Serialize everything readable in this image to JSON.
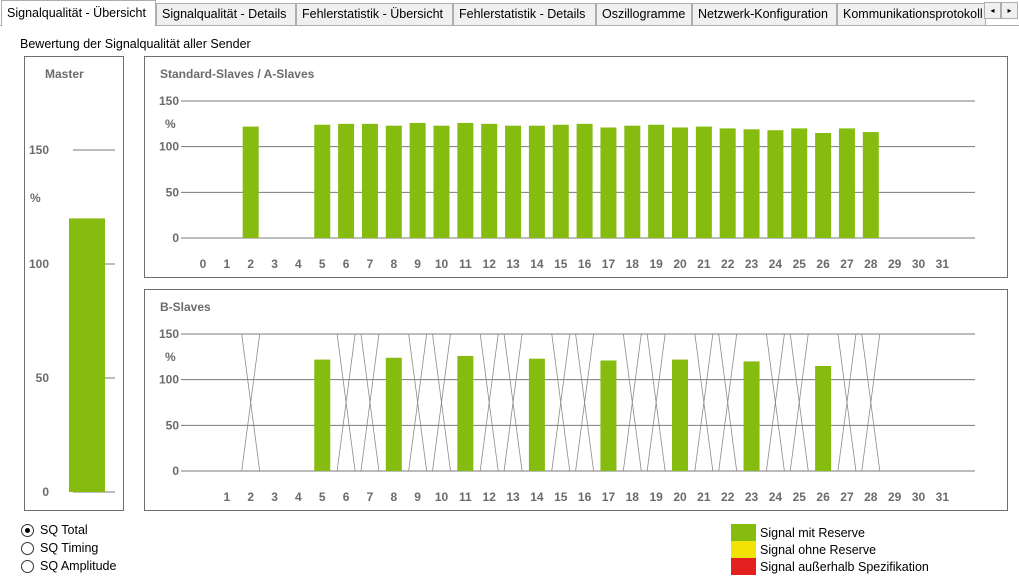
{
  "tabs": [
    {
      "label": "Signalqualität - Übersicht",
      "active": true
    },
    {
      "label": "Signalqualität - Details",
      "active": false
    },
    {
      "label": "Fehlerstatistik - Übersicht",
      "active": false
    },
    {
      "label": "Fehlerstatistik - Details",
      "active": false
    },
    {
      "label": "Oszillogramme",
      "active": false
    },
    {
      "label": "Netzwerk-Konfiguration",
      "active": false
    },
    {
      "label": "Kommunikationsprotokoll",
      "active": false
    }
  ],
  "tab_scroll": {
    "left_icon": "◂",
    "right_icon": "▸"
  },
  "caption": "Bewertung der Signalqualität aller Sender",
  "colors": {
    "green": "#86bc0f",
    "yellow": "#f2e205",
    "red": "#e32020",
    "grid": "#7a7a7a",
    "label": "#6b6b6b"
  },
  "master": {
    "title": "Master",
    "unit": "%",
    "ticks": [
      "150",
      "100",
      "50",
      "0"
    ],
    "value": 120
  },
  "a_slaves": {
    "title": "Standard-Slaves / A-Slaves",
    "unit": "%",
    "ticks": [
      "150",
      "100",
      "50",
      "0"
    ],
    "x_labels": [
      "0",
      "1",
      "2",
      "3",
      "4",
      "5",
      "6",
      "7",
      "8",
      "9",
      "10",
      "11",
      "12",
      "13",
      "14",
      "15",
      "16",
      "17",
      "18",
      "19",
      "20",
      "21",
      "22",
      "23",
      "24",
      "25",
      "26",
      "27",
      "28",
      "29",
      "30",
      "31"
    ]
  },
  "b_slaves": {
    "title": "B-Slaves",
    "unit": "%",
    "ticks": [
      "150",
      "100",
      "50",
      "0"
    ],
    "x_labels": [
      "1",
      "2",
      "3",
      "4",
      "5",
      "6",
      "7",
      "8",
      "9",
      "10",
      "11",
      "12",
      "13",
      "14",
      "15",
      "16",
      "17",
      "18",
      "19",
      "20",
      "21",
      "22",
      "23",
      "24",
      "25",
      "26",
      "27",
      "28",
      "29",
      "30",
      "31"
    ]
  },
  "chart_data": [
    {
      "type": "bar",
      "title": "Master",
      "ylabel": "%",
      "ylim": [
        0,
        150
      ],
      "categories": [
        "Master"
      ],
      "values": [
        120
      ]
    },
    {
      "type": "bar",
      "title": "Standard-Slaves / A-Slaves",
      "ylabel": "%",
      "ylim": [
        0,
        150
      ],
      "x": [
        2,
        5,
        6,
        7,
        8,
        9,
        10,
        11,
        12,
        13,
        14,
        15,
        16,
        17,
        18,
        19,
        20,
        21,
        22,
        23,
        24,
        25,
        26,
        27,
        28
      ],
      "values": [
        122,
        124,
        125,
        125,
        123,
        126,
        123,
        126,
        125,
        123,
        123,
        124,
        125,
        121,
        123,
        124,
        121,
        122,
        120,
        119,
        118,
        120,
        115,
        120,
        116
      ],
      "crossed": []
    },
    {
      "type": "bar",
      "title": "B-Slaves",
      "ylabel": "%",
      "ylim": [
        0,
        150
      ],
      "x": [
        5,
        8,
        11,
        14,
        17,
        20,
        23,
        26
      ],
      "values": [
        122,
        124,
        126,
        123,
        121,
        122,
        120,
        115
      ],
      "crossed": [
        2,
        6,
        7,
        9,
        10,
        12,
        13,
        15,
        16,
        18,
        19,
        21,
        22,
        24,
        25,
        27,
        28
      ]
    }
  ],
  "radios": [
    {
      "label": "SQ Total",
      "checked": true
    },
    {
      "label": "SQ Timing",
      "checked": false
    },
    {
      "label": "SQ Amplitude",
      "checked": false
    }
  ],
  "legend": [
    {
      "label": "Signal mit Reserve",
      "color": "#86bc0f"
    },
    {
      "label": "Signal ohne Reserve",
      "color": "#f2e205"
    },
    {
      "label": "Signal außerhalb Spezifikation",
      "color": "#e32020"
    }
  ]
}
